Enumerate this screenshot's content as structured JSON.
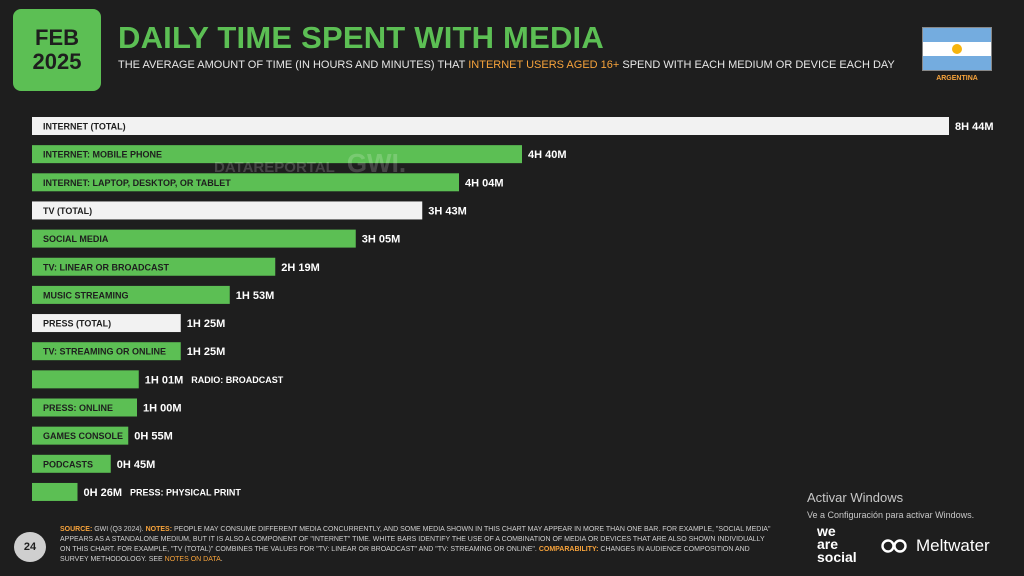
{
  "header": {
    "month": "FEB",
    "year": "2025",
    "title": "DAILY TIME SPENT WITH MEDIA",
    "subtitle_pre": "THE AVERAGE AMOUNT OF TIME (IN HOURS AND MINUTES) THAT ",
    "subtitle_highlight": "INTERNET USERS AGED 16+",
    "subtitle_post": " SPEND WITH EACH MEDIUM OR DEVICE EACH DAY",
    "country": "ARGENTINA"
  },
  "watermark": {
    "brand1": "DATAREPORTAL",
    "brand2": "GWI."
  },
  "colors": {
    "green": "#5cbf54",
    "white_bar": "#f2f2f2",
    "background": "#1e1e1e",
    "accent": "#f7a33b"
  },
  "chart_data": {
    "type": "bar",
    "orientation": "horizontal",
    "unit": "minutes",
    "categories": [
      "INTERNET (TOTAL)",
      "INTERNET: MOBILE PHONE",
      "INTERNET: LAPTOP, DESKTOP, OR TABLET",
      "TV (TOTAL)",
      "SOCIAL MEDIA",
      "TV: LINEAR OR BROADCAST",
      "MUSIC STREAMING",
      "PRESS (TOTAL)",
      "TV: STREAMING OR ONLINE",
      "RADIO: BROADCAST",
      "PRESS: ONLINE",
      "GAMES CONSOLE",
      "PODCASTS",
      "PRESS: PHYSICAL PRINT"
    ],
    "values": [
      524,
      280,
      244,
      223,
      185,
      139,
      113,
      85,
      85,
      61,
      60,
      55,
      45,
      26
    ],
    "value_labels": [
      "8H 44M",
      "4H 40M",
      "4H 04M",
      "3H 43M",
      "3H 05M",
      "2H 19M",
      "1H 53M",
      "1H 25M",
      "1H 25M",
      "1H 01M",
      "1H 00M",
      "0H 55M",
      "0H 45M",
      "0H 26M"
    ],
    "bar_style": [
      "white",
      "green",
      "green",
      "white",
      "green",
      "green",
      "green",
      "white",
      "green",
      "green",
      "green",
      "green",
      "green",
      "green"
    ]
  },
  "footer": {
    "page_number": "24",
    "source_label": "SOURCE:",
    "source_text": " GWI (Q3 2024). ",
    "notes_label": "NOTES:",
    "notes_text": " PEOPLE MAY CONSUME DIFFERENT MEDIA CONCURRENTLY, AND SOME MEDIA SHOWN IN THIS CHART MAY APPEAR IN MORE THAN ONE BAR. FOR EXAMPLE, \"SOCIAL MEDIA\" APPEARS AS A STANDALONE MEDIUM, BUT IT IS ALSO A COMPONENT OF \"INTERNET\" TIME. WHITE BARS IDENTIFY THE USE OF A COMBINATION OF MEDIA OR DEVICES THAT ARE ALSO SHOWN INDIVIDUALLY ON THIS CHART. FOR EXAMPLE, \"TV (TOTAL)\" COMBINES THE VALUES FOR \"TV: LINEAR OR BROADCAST\" AND \"TV: STREAMING OR ONLINE\". ",
    "comparability_label": "COMPARABILITY:",
    "comparability_text": " CHANGES IN AUDIENCE COMPOSITION AND SURVEY METHODOLOGY. SEE ",
    "notes_link": "NOTES ON DATA",
    "end": "."
  },
  "windows_overlay": {
    "line1": "Activar Windows",
    "line2": "Ve a Configuración para activar Windows."
  },
  "logos": {
    "was_line1": "we",
    "was_line2": "are",
    "was_line3": "social",
    "meltwater": "Meltwater"
  }
}
